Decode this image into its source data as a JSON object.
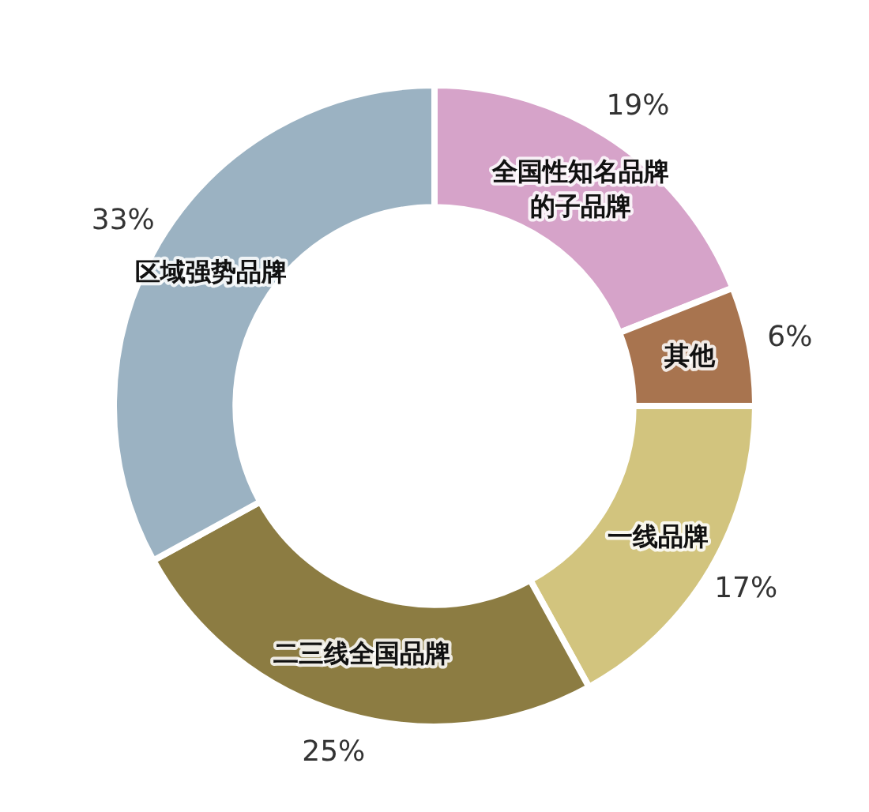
{
  "chart_data": {
    "type": "donut",
    "categories": [
      "全国性知名品牌的子品牌",
      "其他",
      "一线品牌",
      "二三线全国品牌",
      "区域强势品牌"
    ],
    "values": [
      19,
      6,
      17,
      25,
      33
    ],
    "colors": [
      "#d6a3c9",
      "#a8744f",
      "#d2c47e",
      "#8c7c42",
      "#9bb2c2"
    ],
    "value_labels": [
      "19%",
      "6%",
      "17%",
      "25%",
      "33%"
    ],
    "legend": false
  }
}
